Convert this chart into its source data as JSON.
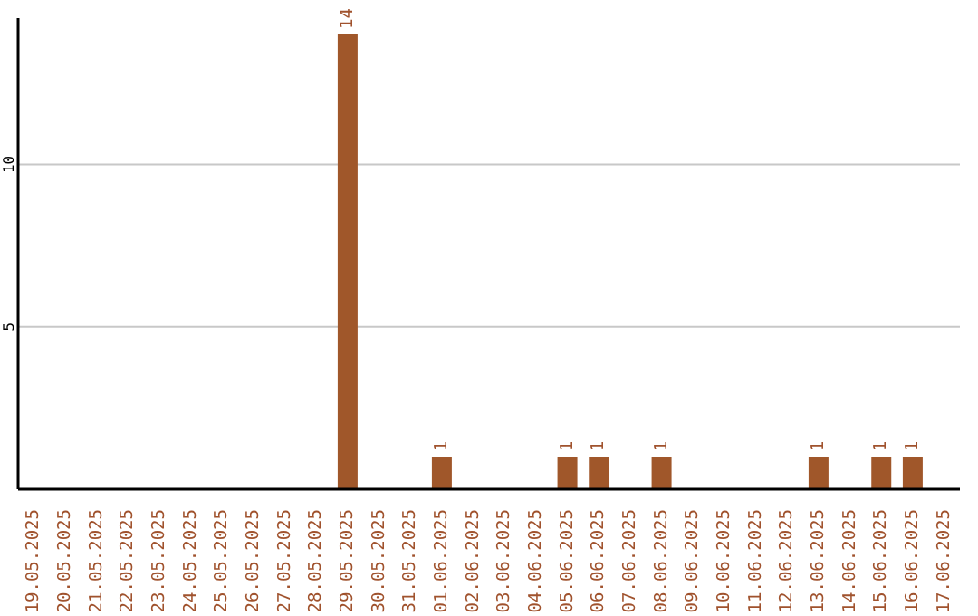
{
  "chart_data": {
    "type": "bar",
    "categories": [
      "19.05.2025",
      "20.05.2025",
      "21.05.2025",
      "22.05.2025",
      "23.05.2025",
      "24.05.2025",
      "25.05.2025",
      "26.05.2025",
      "27.05.2025",
      "28.05.2025",
      "29.05.2025",
      "30.05.2025",
      "31.05.2025",
      "01.06.2025",
      "02.06.2025",
      "03.06.2025",
      "04.06.2025",
      "05.06.2025",
      "06.06.2025",
      "07.06.2025",
      "08.06.2025",
      "09.06.2025",
      "10.06.2025",
      "11.06.2025",
      "12.06.2025",
      "13.06.2025",
      "14.06.2025",
      "15.06.2025",
      "16.06.2025",
      "17.06.2025"
    ],
    "values": [
      0,
      0,
      0,
      0,
      0,
      0,
      0,
      0,
      0,
      0,
      14,
      0,
      0,
      1,
      0,
      0,
      0,
      1,
      1,
      0,
      1,
      0,
      0,
      0,
      0,
      1,
      0,
      1,
      1,
      0
    ],
    "value_labels": [
      null,
      null,
      null,
      null,
      null,
      null,
      null,
      null,
      null,
      null,
      "14",
      null,
      null,
      "1",
      null,
      null,
      null,
      "1",
      "1",
      null,
      "1",
      null,
      null,
      null,
      null,
      "1",
      null,
      "1",
      "1",
      null
    ],
    "color": "#a0572a",
    "ylim": [
      0,
      14.5
    ],
    "yticks": [
      5,
      10
    ],
    "grid": "y"
  }
}
